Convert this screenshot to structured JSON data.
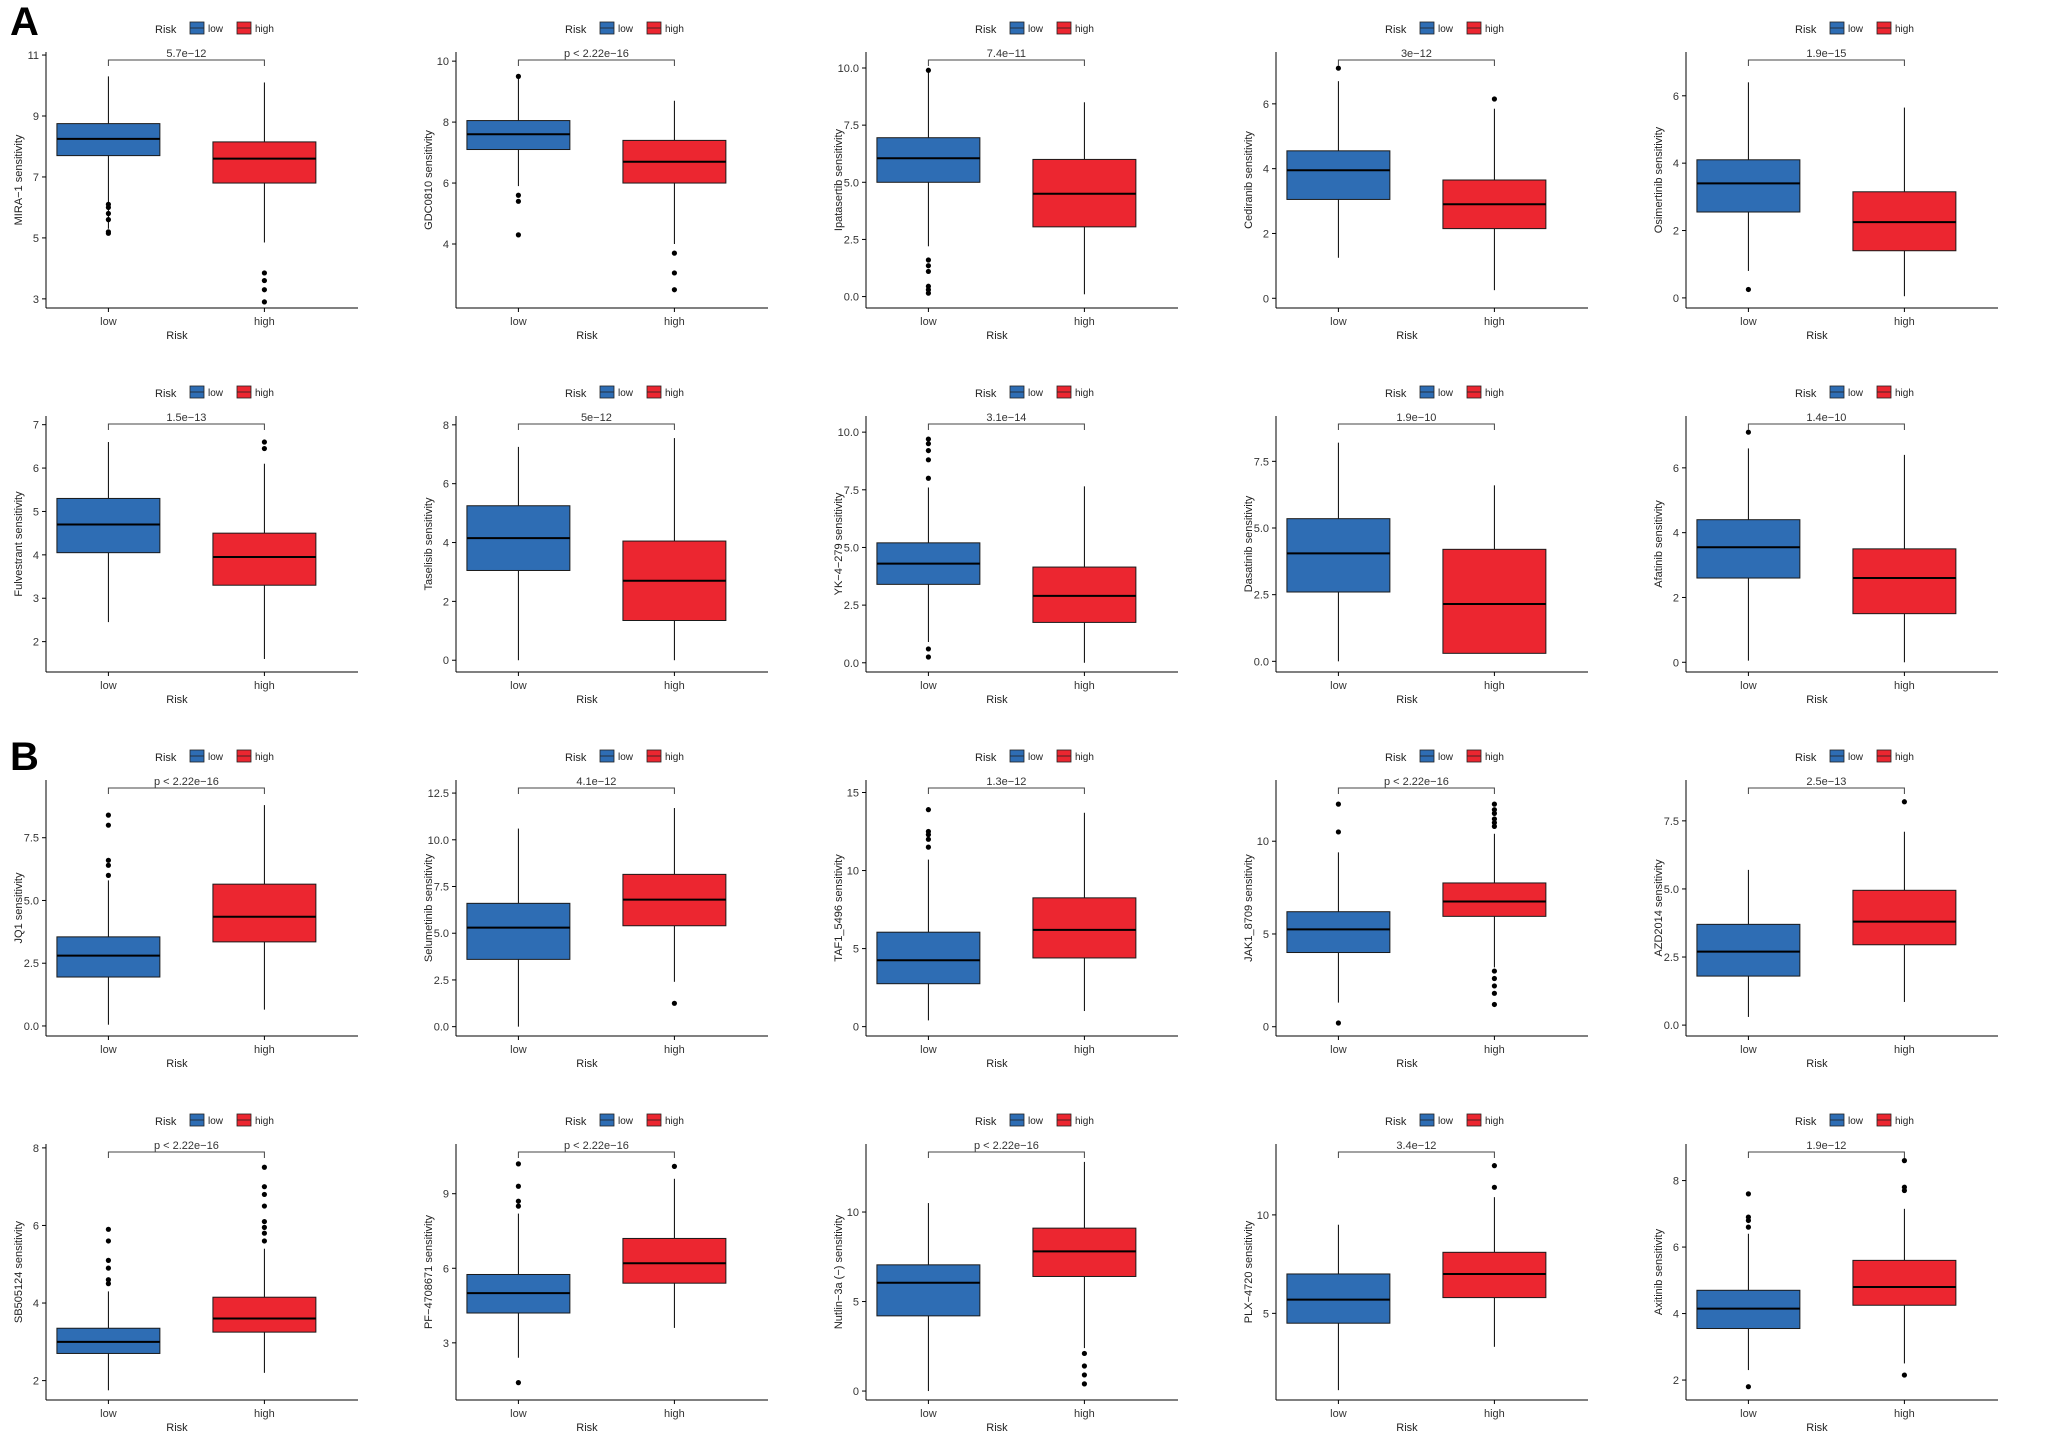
{
  "panels": [
    {
      "letter": "A"
    },
    {
      "letter": "B"
    }
  ],
  "legend": {
    "title": "Risk",
    "items": [
      {
        "label": "low",
        "color": "#2e6db4"
      },
      {
        "label": "high",
        "color": "#ec2630"
      }
    ]
  },
  "colors": {
    "low": "#2e6db4",
    "high": "#ec2630"
  },
  "chart_data": [
    {
      "type": "box",
      "panel": "A",
      "ylabel": "MIRA−1 sensitivity",
      "xlabel": "Risk",
      "categories": [
        "low",
        "high"
      ],
      "yticks": [
        3,
        5,
        7,
        9,
        11
      ],
      "ylim": [
        2.7,
        11.1
      ],
      "pvalue": "5.7e−12",
      "boxes": [
        {
          "group": "low",
          "min": 5.3,
          "q1": 7.7,
          "median": 8.25,
          "q3": 8.75,
          "max": 10.3,
          "outliers": [
            5.15,
            5.2,
            5.6,
            5.8,
            6.0,
            6.1
          ]
        },
        {
          "group": "high",
          "min": 4.85,
          "q1": 6.8,
          "median": 7.6,
          "q3": 8.15,
          "max": 10.1,
          "outliers": [
            2.9,
            3.3,
            3.6,
            3.85
          ]
        }
      ]
    },
    {
      "type": "box",
      "panel": "A",
      "ylabel": "GDC0810 sensitivity",
      "xlabel": "Risk",
      "categories": [
        "low",
        "high"
      ],
      "yticks": [
        4,
        6,
        8,
        10
      ],
      "ylim": [
        1.9,
        10.3
      ],
      "pvalue": "p < 2.22e−16",
      "boxes": [
        {
          "group": "low",
          "min": 5.9,
          "q1": 7.1,
          "median": 7.6,
          "q3": 8.05,
          "max": 9.5,
          "outliers": [
            4.3,
            5.4,
            5.6,
            9.5
          ]
        },
        {
          "group": "high",
          "min": 4.0,
          "q1": 6.0,
          "median": 6.7,
          "q3": 7.4,
          "max": 8.7,
          "outliers": [
            2.5,
            3.05,
            3.7
          ]
        }
      ]
    },
    {
      "type": "box",
      "panel": "A",
      "ylabel": "Ipatasertib sensitivity",
      "xlabel": "Risk",
      "categories": [
        "low",
        "high"
      ],
      "yticks": [
        0.0,
        2.5,
        5.0,
        7.5,
        10.0
      ],
      "yticklabels": [
        "0.0",
        "2.5",
        "5.0",
        "7.5",
        "10.0"
      ],
      "ylim": [
        -0.5,
        10.7
      ],
      "pvalue": "7.4e−11",
      "boxes": [
        {
          "group": "low",
          "min": 2.2,
          "q1": 5.0,
          "median": 6.05,
          "q3": 6.95,
          "max": 9.9,
          "outliers": [
            0.15,
            0.3,
            0.45,
            1.1,
            1.35,
            1.6,
            9.9
          ]
        },
        {
          "group": "high",
          "min": 0.1,
          "q1": 3.05,
          "median": 4.5,
          "q3": 6.0,
          "max": 8.5,
          "outliers": []
        }
      ]
    },
    {
      "type": "box",
      "panel": "A",
      "ylabel": "Cediranib sensitivity",
      "xlabel": "Risk",
      "categories": [
        "low",
        "high"
      ],
      "yticks": [
        0,
        2,
        4,
        6
      ],
      "ylim": [
        -0.3,
        7.6
      ],
      "pvalue": "3e−12",
      "boxes": [
        {
          "group": "low",
          "min": 1.25,
          "q1": 3.05,
          "median": 3.95,
          "q3": 4.55,
          "max": 6.7,
          "outliers": [
            7.1
          ]
        },
        {
          "group": "high",
          "min": 0.25,
          "q1": 2.15,
          "median": 2.9,
          "q3": 3.65,
          "max": 5.85,
          "outliers": [
            6.15
          ]
        }
      ]
    },
    {
      "type": "box",
      "panel": "A",
      "ylabel": "Osimertinib sensitivity",
      "xlabel": "Risk",
      "categories": [
        "low",
        "high"
      ],
      "yticks": [
        0,
        2,
        4,
        6
      ],
      "ylim": [
        -0.3,
        7.3
      ],
      "pvalue": "1.9e−15",
      "boxes": [
        {
          "group": "low",
          "min": 0.8,
          "q1": 2.55,
          "median": 3.4,
          "q3": 4.1,
          "max": 6.4,
          "outliers": [
            0.25
          ]
        },
        {
          "group": "high",
          "min": 0.05,
          "q1": 1.4,
          "median": 2.25,
          "q3": 3.15,
          "max": 5.65,
          "outliers": []
        }
      ]
    },
    {
      "type": "box",
      "panel": "A",
      "ylabel": "Fulvestrant sensitivity",
      "xlabel": "Risk",
      "categories": [
        "low",
        "high"
      ],
      "yticks": [
        2,
        3,
        4,
        5,
        6,
        7
      ],
      "ylim": [
        1.3,
        7.2
      ],
      "pvalue": "1.5e−13",
      "boxes": [
        {
          "group": "low",
          "min": 2.45,
          "q1": 4.05,
          "median": 4.7,
          "q3": 5.3,
          "max": 6.6,
          "outliers": []
        },
        {
          "group": "high",
          "min": 1.6,
          "q1": 3.3,
          "median": 3.95,
          "q3": 4.5,
          "max": 6.1,
          "outliers": [
            6.45,
            6.6
          ]
        }
      ]
    },
    {
      "type": "box",
      "panel": "A",
      "ylabel": "Taselisib sensitivity",
      "xlabel": "Risk",
      "categories": [
        "low",
        "high"
      ],
      "yticks": [
        0,
        2,
        4,
        6,
        8
      ],
      "ylim": [
        -0.4,
        8.3
      ],
      "pvalue": "5e−12",
      "boxes": [
        {
          "group": "low",
          "min": 0.0,
          "q1": 3.05,
          "median": 4.15,
          "q3": 5.25,
          "max": 7.25,
          "outliers": []
        },
        {
          "group": "high",
          "min": 0.0,
          "q1": 1.35,
          "median": 2.7,
          "q3": 4.05,
          "max": 7.55,
          "outliers": []
        }
      ]
    },
    {
      "type": "box",
      "panel": "A",
      "ylabel": "YK−4−279 sensitivity",
      "xlabel": "Risk",
      "categories": [
        "low",
        "high"
      ],
      "yticks": [
        0.0,
        2.5,
        5.0,
        7.5,
        10.0
      ],
      "yticklabels": [
        "0.0",
        "2.5",
        "5.0",
        "7.5",
        "10.0"
      ],
      "ylim": [
        -0.4,
        10.7
      ],
      "pvalue": "3.1e−14",
      "boxes": [
        {
          "group": "low",
          "min": 0.9,
          "q1": 3.4,
          "median": 4.3,
          "q3": 5.2,
          "max": 7.6,
          "outliers": [
            0.25,
            0.6,
            8.0,
            8.8,
            9.2,
            9.5,
            9.7
          ]
        },
        {
          "group": "high",
          "min": 0.0,
          "q1": 1.75,
          "median": 2.9,
          "q3": 4.15,
          "max": 7.65,
          "outliers": []
        }
      ]
    },
    {
      "type": "box",
      "panel": "A",
      "ylabel": "Dasatinib sensitivity",
      "xlabel": "Risk",
      "categories": [
        "low",
        "high"
      ],
      "yticks": [
        0.0,
        2.5,
        5.0,
        7.5
      ],
      "yticklabels": [
        "0.0",
        "2.5",
        "5.0",
        "7.5"
      ],
      "ylim": [
        -0.4,
        9.2
      ],
      "pvalue": "1.9e−10",
      "boxes": [
        {
          "group": "low",
          "min": 0.0,
          "q1": 2.6,
          "median": 4.05,
          "q3": 5.35,
          "max": 8.2,
          "outliers": []
        },
        {
          "group": "high",
          "min": 0.3,
          "q1": 0.3,
          "median": 2.15,
          "q3": 4.2,
          "max": 6.6,
          "outliers": []
        }
      ]
    },
    {
      "type": "box",
      "panel": "A",
      "ylabel": "Afatinib sensitivity",
      "xlabel": "Risk",
      "categories": [
        "low",
        "high"
      ],
      "yticks": [
        0,
        2,
        4,
        6
      ],
      "ylim": [
        -0.3,
        7.6
      ],
      "pvalue": "1.4e−10",
      "boxes": [
        {
          "group": "low",
          "min": 0.05,
          "q1": 2.6,
          "median": 3.55,
          "q3": 4.4,
          "max": 6.6,
          "outliers": [
            7.1
          ]
        },
        {
          "group": "high",
          "min": 0.0,
          "q1": 1.5,
          "median": 2.6,
          "q3": 3.5,
          "max": 6.4,
          "outliers": []
        }
      ]
    },
    {
      "type": "box",
      "panel": "B",
      "ylabel": "JQ1 sensitivity",
      "xlabel": "Risk",
      "categories": [
        "low",
        "high"
      ],
      "yticks": [
        0.0,
        2.5,
        5.0,
        7.5
      ],
      "yticklabels": [
        "0.0",
        "2.5",
        "5.0",
        "7.5"
      ],
      "ylim": [
        -0.4,
        9.8
      ],
      "pvalue": "p < 2.22e−16",
      "boxes": [
        {
          "group": "low",
          "min": 0.05,
          "q1": 1.95,
          "median": 2.8,
          "q3": 3.55,
          "max": 5.8,
          "outliers": [
            6.0,
            6.4,
            6.6,
            8.0,
            8.4
          ]
        },
        {
          "group": "high",
          "min": 0.65,
          "q1": 3.35,
          "median": 4.35,
          "q3": 5.65,
          "max": 8.8,
          "outliers": []
        }
      ]
    },
    {
      "type": "box",
      "panel": "B",
      "ylabel": "Selumetinib sensitivity",
      "xlabel": "Risk",
      "categories": [
        "low",
        "high"
      ],
      "yticks": [
        0.0,
        2.5,
        5.0,
        7.5,
        10.0,
        12.5
      ],
      "yticklabels": [
        "0.0",
        "2.5",
        "5.0",
        "7.5",
        "10.0",
        "12.5"
      ],
      "ylim": [
        -0.5,
        13.2
      ],
      "pvalue": "4.1e−12",
      "boxes": [
        {
          "group": "low",
          "min": 0.0,
          "q1": 3.6,
          "median": 5.3,
          "q3": 6.6,
          "max": 10.6,
          "outliers": []
        },
        {
          "group": "high",
          "min": 2.4,
          "q1": 5.4,
          "median": 6.8,
          "q3": 8.15,
          "max": 11.7,
          "outliers": [
            1.25
          ]
        }
      ]
    },
    {
      "type": "box",
      "panel": "B",
      "ylabel": "TAF1_5496 sensitivity",
      "xlabel": "Risk",
      "categories": [
        "low",
        "high"
      ],
      "yticks": [
        0,
        5,
        10,
        15
      ],
      "ylim": [
        -0.6,
        15.8
      ],
      "pvalue": "1.3e−12",
      "boxes": [
        {
          "group": "low",
          "min": 0.4,
          "q1": 2.75,
          "median": 4.25,
          "q3": 6.05,
          "max": 10.7,
          "outliers": [
            11.5,
            12.0,
            12.3,
            12.5,
            13.9
          ]
        },
        {
          "group": "high",
          "min": 1.0,
          "q1": 4.4,
          "median": 6.2,
          "q3": 8.25,
          "max": 13.7,
          "outliers": []
        }
      ]
    },
    {
      "type": "box",
      "panel": "B",
      "ylabel": "JAK1_8709 sensitivity",
      "xlabel": "Risk",
      "categories": [
        "low",
        "high"
      ],
      "yticks": [
        0,
        5,
        10
      ],
      "ylim": [
        -0.5,
        13.3
      ],
      "pvalue": "p < 2.22e−16",
      "boxes": [
        {
          "group": "low",
          "min": 1.3,
          "q1": 4.0,
          "median": 5.25,
          "q3": 6.2,
          "max": 9.4,
          "outliers": [
            0.2,
            10.5,
            12.0
          ]
        },
        {
          "group": "high",
          "min": 3.2,
          "q1": 5.95,
          "median": 6.75,
          "q3": 7.75,
          "max": 10.4,
          "outliers": [
            1.2,
            1.8,
            2.2,
            2.6,
            3.0,
            10.8,
            11.0,
            11.2,
            11.5,
            11.7,
            12.0
          ]
        }
      ]
    },
    {
      "type": "box",
      "panel": "B",
      "ylabel": "AZD2014 sensitivity",
      "xlabel": "Risk",
      "categories": [
        "low",
        "high"
      ],
      "yticks": [
        0.0,
        2.5,
        5.0,
        7.5
      ],
      "yticklabels": [
        "0.0",
        "2.5",
        "5.0",
        "7.5"
      ],
      "ylim": [
        -0.4,
        9.0
      ],
      "pvalue": "2.5e−13",
      "boxes": [
        {
          "group": "low",
          "min": 0.3,
          "q1": 1.8,
          "median": 2.7,
          "q3": 3.7,
          "max": 5.7,
          "outliers": []
        },
        {
          "group": "high",
          "min": 0.85,
          "q1": 2.95,
          "median": 3.8,
          "q3": 4.95,
          "max": 7.1,
          "outliers": [
            8.2
          ]
        }
      ]
    },
    {
      "type": "box",
      "panel": "B",
      "ylabel": "SB505124 sensitivity",
      "xlabel": "Risk",
      "categories": [
        "low",
        "high"
      ],
      "yticks": [
        2,
        4,
        6,
        8
      ],
      "ylim": [
        1.5,
        8.1
      ],
      "pvalue": "p < 2.22e−16",
      "boxes": [
        {
          "group": "low",
          "min": 1.75,
          "q1": 2.7,
          "median": 3.0,
          "q3": 3.35,
          "max": 4.3,
          "outliers": [
            4.5,
            4.6,
            4.9,
            5.1,
            5.6,
            5.9
          ]
        },
        {
          "group": "high",
          "min": 2.2,
          "q1": 3.25,
          "median": 3.6,
          "q3": 4.15,
          "max": 5.4,
          "outliers": [
            5.6,
            5.8,
            5.95,
            6.1,
            6.5,
            6.8,
            7.0,
            7.5
          ]
        }
      ]
    },
    {
      "type": "box",
      "panel": "B",
      "ylabel": "PF−4708671 sensitivity",
      "xlabel": "Risk",
      "categories": [
        "low",
        "high"
      ],
      "yticks": [
        3,
        6,
        9
      ],
      "ylim": [
        0.7,
        11.0
      ],
      "pvalue": "p < 2.22e−16",
      "boxes": [
        {
          "group": "low",
          "min": 2.4,
          "q1": 4.2,
          "median": 5.0,
          "q3": 5.75,
          "max": 8.2,
          "outliers": [
            1.4,
            8.5,
            8.7,
            9.3,
            10.2
          ]
        },
        {
          "group": "high",
          "min": 3.6,
          "q1": 5.4,
          "median": 6.2,
          "q3": 7.2,
          "max": 9.6,
          "outliers": [
            10.1
          ]
        }
      ]
    },
    {
      "type": "box",
      "panel": "B",
      "ylabel": "Nutlin−3a (−) sensitivity",
      "xlabel": "Risk",
      "categories": [
        "low",
        "high"
      ],
      "yticks": [
        0,
        5,
        10
      ],
      "ylim": [
        -0.5,
        13.8
      ],
      "pvalue": "p < 2.22e−16",
      "boxes": [
        {
          "group": "low",
          "min": 0.0,
          "q1": 4.2,
          "median": 6.05,
          "q3": 7.05,
          "max": 10.5,
          "outliers": []
        },
        {
          "group": "high",
          "min": 2.4,
          "q1": 6.4,
          "median": 7.8,
          "q3": 9.1,
          "max": 12.8,
          "outliers": [
            0.4,
            0.9,
            1.4,
            2.1
          ]
        }
      ]
    },
    {
      "type": "box",
      "panel": "B",
      "ylabel": "PLX−4720 sensitivity",
      "xlabel": "Risk",
      "categories": [
        "low",
        "high"
      ],
      "yticks": [
        5,
        10
      ],
      "ylim": [
        0.6,
        13.6
      ],
      "pvalue": "3.4e−12",
      "boxes": [
        {
          "group": "low",
          "min": 1.1,
          "q1": 4.5,
          "median": 5.7,
          "q3": 7.0,
          "max": 9.5,
          "outliers": []
        },
        {
          "group": "high",
          "min": 3.3,
          "q1": 5.8,
          "median": 7.0,
          "q3": 8.1,
          "max": 10.9,
          "outliers": [
            11.4,
            12.5
          ]
        }
      ]
    },
    {
      "type": "box",
      "panel": "B",
      "ylabel": "Axitinib sensitivity",
      "xlabel": "Risk",
      "categories": [
        "low",
        "high"
      ],
      "yticks": [
        2,
        4,
        6,
        8
      ],
      "ylim": [
        1.4,
        9.1
      ],
      "pvalue": "1.9e−12",
      "boxes": [
        {
          "group": "low",
          "min": 2.3,
          "q1": 3.55,
          "median": 4.15,
          "q3": 4.7,
          "max": 6.4,
          "outliers": [
            1.8,
            6.6,
            6.8,
            6.9,
            7.6
          ]
        },
        {
          "group": "high",
          "min": 2.5,
          "q1": 4.25,
          "median": 4.8,
          "q3": 5.6,
          "max": 7.15,
          "outliers": [
            2.15,
            7.7,
            7.8,
            8.6
          ]
        }
      ]
    }
  ]
}
